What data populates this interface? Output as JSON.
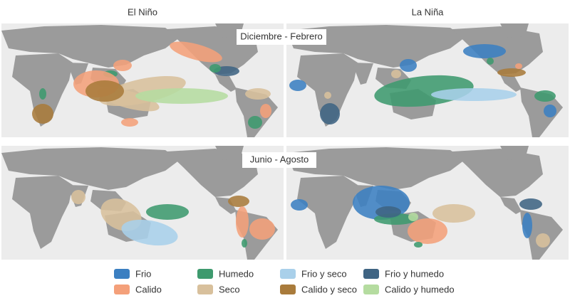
{
  "columns": [
    "El Niño",
    "La Niña"
  ],
  "rows": [
    "Diciembre - Febrero",
    "Junio - Agosto"
  ],
  "legend": [
    {
      "label": "Frio",
      "color": "#3b7fc1"
    },
    {
      "label": "Calido",
      "color": "#f4a07a"
    },
    {
      "label": "Humedo",
      "color": "#3e9a6e"
    },
    {
      "label": "Seco",
      "color": "#d8c09c"
    },
    {
      "label": "Frio y seco",
      "color": "#a9d0ea"
    },
    {
      "label": "Calido y seco",
      "color": "#a97b3b"
    },
    {
      "label": "Frio y humedo",
      "color": "#3f6483"
    },
    {
      "label": "Calido y humedo",
      "color": "#b5dca0"
    }
  ]
}
